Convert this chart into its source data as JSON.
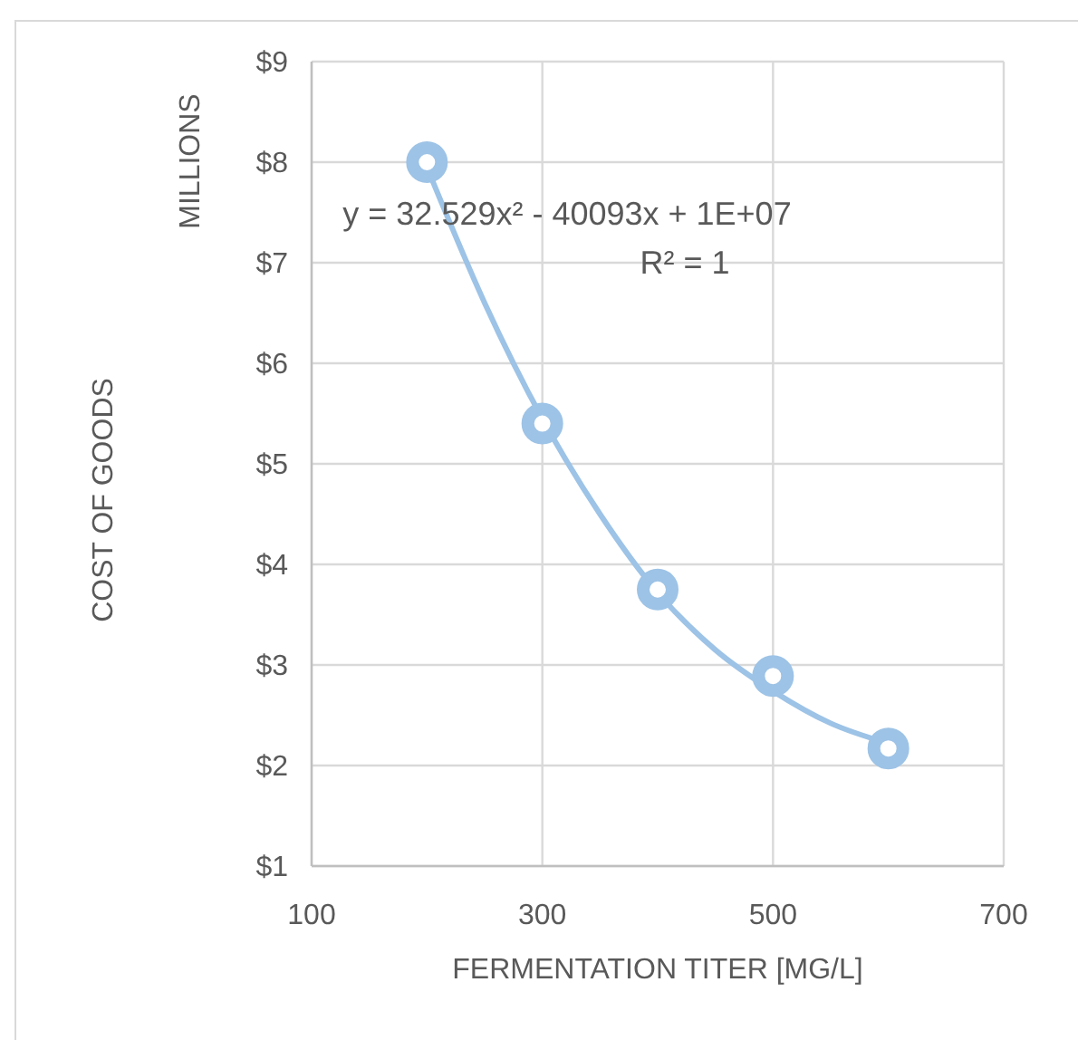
{
  "chart_data": {
    "type": "scatter",
    "xlabel": "FERMENTATION TITER [MG/L]",
    "ylabel": "COST OF GOODS",
    "x": [
      200,
      300,
      400,
      500,
      600
    ],
    "series": [
      {
        "color": "#9dc3e6",
        "marker": "circle",
        "values": [
          8.0,
          5.4,
          3.75,
          2.89,
          2.17
        ]
      },
      {
        "type": "line",
        "color": "#9dc3e6",
        "line_style": "solid",
        "x": [
          200,
          250,
          300,
          350,
          400,
          450,
          500,
          550,
          600
        ],
        "values": [
          7.95,
          6.6,
          5.45,
          4.5,
          3.72,
          3.15,
          2.74,
          2.42,
          2.22
        ]
      }
    ],
    "xlim": [
      100,
      700
    ],
    "xticks": [
      100,
      300,
      500,
      700
    ],
    "ylim": [
      1,
      9
    ],
    "yticks": [
      {
        "value": 1,
        "label": "$1"
      },
      {
        "value": 2,
        "label": "$2"
      },
      {
        "value": 3,
        "label": "$3"
      },
      {
        "value": 4,
        "label": "$4"
      },
      {
        "value": 5,
        "label": "$5"
      },
      {
        "value": 6,
        "label": "$6"
      },
      {
        "value": 7,
        "label": "$7"
      },
      {
        "value": 8,
        "label": "$8"
      },
      {
        "value": 9,
        "label": "$9"
      }
    ],
    "grid": true,
    "annotations": [
      "MILLIONS",
      "y = 32.529x² - 40093x + 1E+07",
      "R² = 1"
    ]
  }
}
